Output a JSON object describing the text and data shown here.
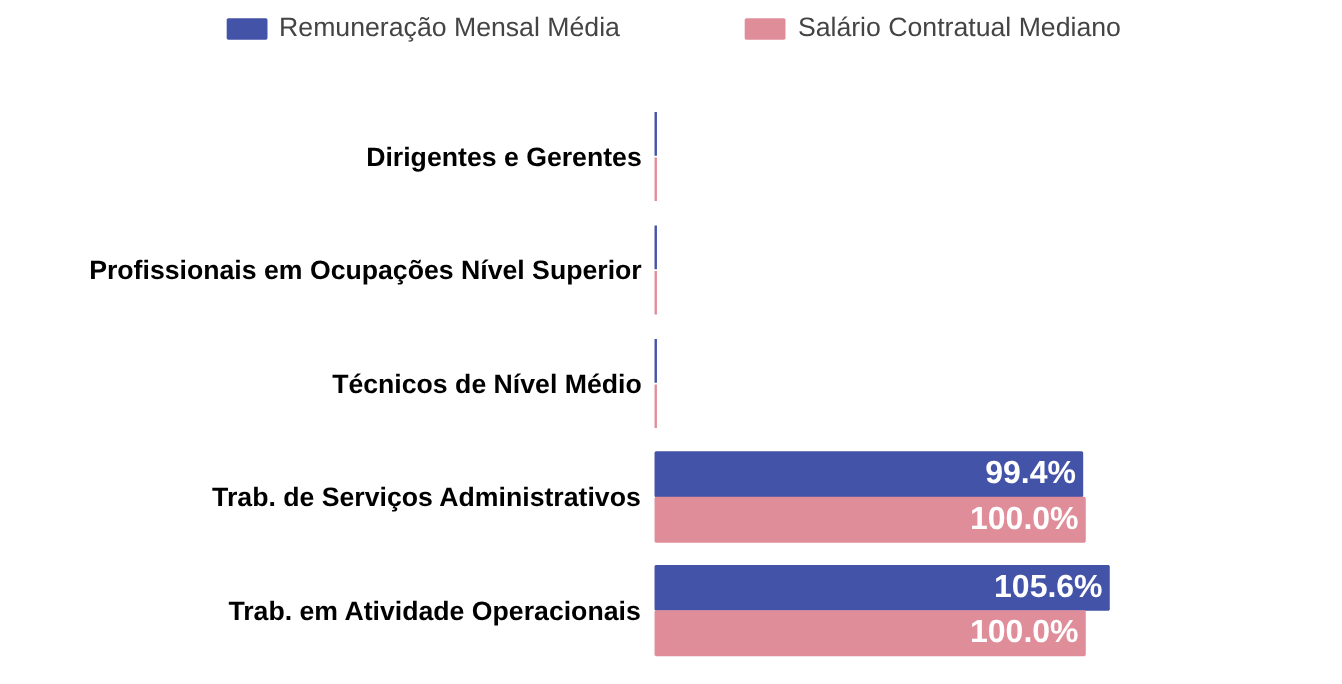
{
  "chart_data": {
    "type": "bar",
    "orientation": "horizontal",
    "categories": [
      "Dirigentes e Gerentes",
      "Profissionais em Ocupações Nível Superior",
      "Técnicos de Nível Médio",
      "Trab. de Serviços Administrativos",
      "Trab. em Atividade Operacionais"
    ],
    "series": [
      {
        "name": "Remuneração Mensal Média",
        "color": "#4353a8",
        "values": [
          0,
          0,
          0,
          99.4,
          105.6
        ],
        "value_labels": [
          null,
          null,
          null,
          "99.4%",
          "105.6%"
        ]
      },
      {
        "name": "Salário Contratual Mediano",
        "color": "#e08d9a",
        "values": [
          0,
          0,
          0,
          100.0,
          100.0
        ],
        "value_labels": [
          null,
          null,
          null,
          "100.0%",
          "100.0%"
        ]
      }
    ],
    "legend": "top",
    "grid": false,
    "tick_labels": "y"
  }
}
